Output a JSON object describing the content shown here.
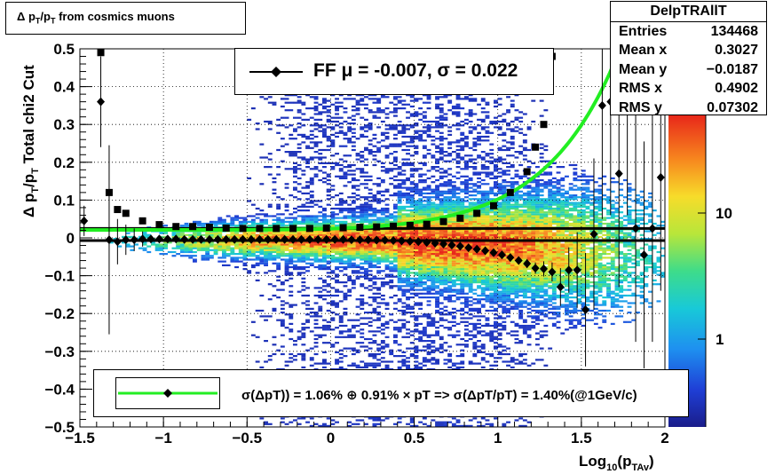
{
  "chart_data": {
    "type": "heatmap",
    "title": "Δ p_T/p_T from cosmics muons",
    "xlabel": "Log10(pTAv)",
    "ylabel": "Δ p_T/p_T  Total chi2 Cut",
    "xlim": [
      -1.5,
      2.0
    ],
    "ylim": [
      -0.5,
      0.5
    ],
    "xticks": [
      "−1.5",
      "−1",
      "−0.5",
      "0",
      "0.5",
      "1",
      "1.5",
      "2"
    ],
    "yticks": [
      "−0.5",
      "−0.4",
      "−0.3",
      "−0.2",
      "−0.1",
      "0",
      "0.1",
      "0.2",
      "0.3",
      "0.4",
      "0.5"
    ],
    "z_scale": "log",
    "z_ticks": [
      "1",
      "10"
    ],
    "grid": true,
    "stats": {
      "title": "DelpTRAllT",
      "rows": [
        {
          "label": "Entries",
          "value": "134468"
        },
        {
          "label": "Mean x",
          "value": "0.3027"
        },
        {
          "label": "Mean y",
          "value": "−0.0187"
        },
        {
          "label": "RMS x",
          "value": "0.4902"
        },
        {
          "label": "RMS y",
          "value": "0.07302"
        }
      ]
    },
    "fit_label": "FF μ = -0.007, σ =   0.022",
    "legend_label": "σ(ΔpT)) =  1.06% ⊕  0.91% × pT => σ(ΔpT/pT) =  1.40%(@1GeV/c)",
    "sigma_fit": {
      "a_percent": 1.06,
      "b_percent": 0.91,
      "offset": 0.021
    },
    "mean_line_y": -0.007,
    "upper_line_y": 0.025,
    "sigma_points": [
      {
        "x": -1.375,
        "y": 0.49
      },
      {
        "x": -1.325,
        "y": 0.12
      },
      {
        "x": -1.275,
        "y": 0.075
      },
      {
        "x": -1.225,
        "y": 0.065
      },
      {
        "x": -1.125,
        "y": 0.045
      },
      {
        "x": -1.025,
        "y": 0.035
      },
      {
        "x": -0.925,
        "y": 0.03
      },
      {
        "x": -0.825,
        "y": 0.03
      },
      {
        "x": -0.725,
        "y": 0.028
      },
      {
        "x": -0.625,
        "y": 0.026
      },
      {
        "x": -0.525,
        "y": 0.025
      },
      {
        "x": -0.425,
        "y": 0.025
      },
      {
        "x": -0.325,
        "y": 0.025
      },
      {
        "x": -0.225,
        "y": 0.025
      },
      {
        "x": -0.125,
        "y": 0.025
      },
      {
        "x": -0.025,
        "y": 0.026
      },
      {
        "x": 0.075,
        "y": 0.027
      },
      {
        "x": 0.175,
        "y": 0.028
      },
      {
        "x": 0.275,
        "y": 0.029
      },
      {
        "x": 0.375,
        "y": 0.031
      },
      {
        "x": 0.475,
        "y": 0.033
      },
      {
        "x": 0.575,
        "y": 0.036
      },
      {
        "x": 0.675,
        "y": 0.043
      },
      {
        "x": 0.775,
        "y": 0.052
      },
      {
        "x": 0.875,
        "y": 0.065
      },
      {
        "x": 0.975,
        "y": 0.085
      },
      {
        "x": 1.075,
        "y": 0.12
      },
      {
        "x": 1.175,
        "y": 0.175
      },
      {
        "x": 1.225,
        "y": 0.24
      },
      {
        "x": 1.275,
        "y": 0.3
      },
      {
        "x": 1.325,
        "y": 0.48
      }
    ],
    "mean_points": [
      {
        "x": -1.475,
        "y": 0.045,
        "e": 0.04
      },
      {
        "x": -1.375,
        "y": 0.36,
        "e": 0.12
      },
      {
        "x": -1.325,
        "y": -0.005,
        "e": 0.25
      },
      {
        "x": -1.275,
        "y": -0.01,
        "e": 0.06
      },
      {
        "x": -1.225,
        "y": -0.005,
        "e": 0.04
      },
      {
        "x": -1.175,
        "y": -0.005,
        "e": 0.03
      },
      {
        "x": -1.125,
        "y": -0.003,
        "e": 0.02
      },
      {
        "x": -1.075,
        "y": -0.003,
        "e": 0.01
      },
      {
        "x": -1.025,
        "y": -0.003,
        "e": 0.01
      },
      {
        "x": -0.975,
        "y": -0.003,
        "e": 0.005
      },
      {
        "x": -0.925,
        "y": -0.003,
        "e": 0.005
      },
      {
        "x": -0.875,
        "y": -0.004,
        "e": 0.004
      },
      {
        "x": -0.825,
        "y": -0.004,
        "e": 0.004
      },
      {
        "x": -0.775,
        "y": -0.004,
        "e": 0.003
      },
      {
        "x": -0.725,
        "y": -0.004,
        "e": 0.003
      },
      {
        "x": -0.675,
        "y": -0.004,
        "e": 0.003
      },
      {
        "x": -0.625,
        "y": -0.004,
        "e": 0.003
      },
      {
        "x": -0.575,
        "y": -0.004,
        "e": 0.003
      },
      {
        "x": -0.525,
        "y": -0.004,
        "e": 0.003
      },
      {
        "x": -0.475,
        "y": -0.004,
        "e": 0.003
      },
      {
        "x": -0.425,
        "y": -0.004,
        "e": 0.003
      },
      {
        "x": -0.375,
        "y": -0.004,
        "e": 0.003
      },
      {
        "x": -0.325,
        "y": -0.004,
        "e": 0.003
      },
      {
        "x": -0.275,
        "y": -0.004,
        "e": 0.003
      },
      {
        "x": -0.225,
        "y": -0.004,
        "e": 0.003
      },
      {
        "x": -0.175,
        "y": -0.004,
        "e": 0.003
      },
      {
        "x": -0.125,
        "y": -0.004,
        "e": 0.003
      },
      {
        "x": -0.075,
        "y": -0.004,
        "e": 0.003
      },
      {
        "x": -0.025,
        "y": -0.004,
        "e": 0.003
      },
      {
        "x": 0.025,
        "y": -0.004,
        "e": 0.003
      },
      {
        "x": 0.075,
        "y": -0.004,
        "e": 0.003
      },
      {
        "x": 0.125,
        "y": -0.005,
        "e": 0.003
      },
      {
        "x": 0.175,
        "y": -0.005,
        "e": 0.003
      },
      {
        "x": 0.225,
        "y": -0.005,
        "e": 0.003
      },
      {
        "x": 0.275,
        "y": -0.006,
        "e": 0.003
      },
      {
        "x": 0.325,
        "y": -0.006,
        "e": 0.003
      },
      {
        "x": 0.375,
        "y": -0.007,
        "e": 0.003
      },
      {
        "x": 0.425,
        "y": -0.008,
        "e": 0.003
      },
      {
        "x": 0.475,
        "y": -0.009,
        "e": 0.003
      },
      {
        "x": 0.525,
        "y": -0.01,
        "e": 0.003
      },
      {
        "x": 0.575,
        "y": -0.012,
        "e": 0.003
      },
      {
        "x": 0.625,
        "y": -0.014,
        "e": 0.003
      },
      {
        "x": 0.675,
        "y": -0.016,
        "e": 0.004
      },
      {
        "x": 0.725,
        "y": -0.019,
        "e": 0.004
      },
      {
        "x": 0.775,
        "y": -0.022,
        "e": 0.004
      },
      {
        "x": 0.825,
        "y": -0.026,
        "e": 0.005
      },
      {
        "x": 0.875,
        "y": -0.03,
        "e": 0.005
      },
      {
        "x": 0.925,
        "y": -0.034,
        "e": 0.006
      },
      {
        "x": 0.975,
        "y": -0.039,
        "e": 0.006
      },
      {
        "x": 1.025,
        "y": -0.045,
        "e": 0.007
      },
      {
        "x": 1.075,
        "y": -0.052,
        "e": 0.008
      },
      {
        "x": 1.125,
        "y": -0.06,
        "e": 0.01
      },
      {
        "x": 1.175,
        "y": -0.068,
        "e": 0.012
      },
      {
        "x": 1.225,
        "y": -0.08,
        "e": 0.015
      },
      {
        "x": 1.275,
        "y": -0.082,
        "e": 0.02
      },
      {
        "x": 1.325,
        "y": -0.09,
        "e": 0.025
      },
      {
        "x": 1.375,
        "y": -0.13,
        "e": 0.05
      },
      {
        "x": 1.425,
        "y": -0.085,
        "e": 0.06
      },
      {
        "x": 1.475,
        "y": -0.085,
        "e": 0.1
      },
      {
        "x": 1.525,
        "y": -0.19,
        "e": 0.15
      },
      {
        "x": 1.575,
        "y": 0.01,
        "e": 0.2
      },
      {
        "x": 1.625,
        "y": 0.35,
        "e": 0.3
      },
      {
        "x": 1.675,
        "y": 0.36,
        "e": 0.3
      },
      {
        "x": 1.725,
        "y": 0.17,
        "e": 0.3
      },
      {
        "x": 1.775,
        "y": 0.36,
        "e": 0.3
      },
      {
        "x": 1.825,
        "y": 0.025,
        "e": 0.3
      },
      {
        "x": 1.875,
        "y": -0.045,
        "e": 0.3
      },
      {
        "x": 1.925,
        "y": 0.025,
        "e": 0.3
      },
      {
        "x": 1.975,
        "y": 0.16,
        "e": 0.3
      }
    ]
  }
}
